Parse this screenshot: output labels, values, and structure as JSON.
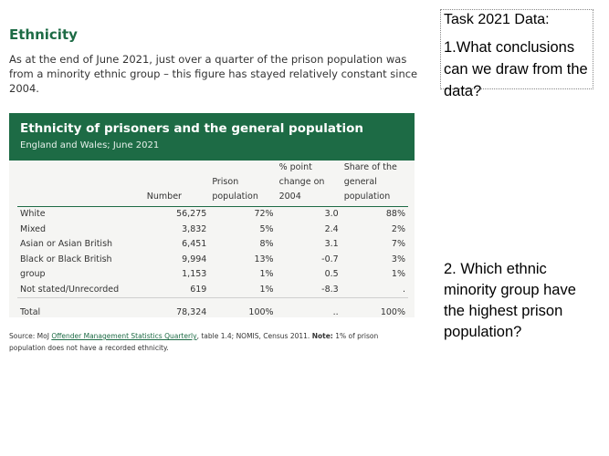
{
  "article": {
    "heading": "Ethnicity",
    "intro": "As at the end of June 2021, just over a quarter of the prison population was from a minority ethnic group – this figure has stayed relatively constant since 2004."
  },
  "table": {
    "title": "Ethnicity of prisoners and the general population",
    "subtitle": "England and Wales; June 2021",
    "headers": [
      "",
      "Number",
      "Prison population",
      "% point change on 2004",
      "Share of the general population"
    ],
    "rows": [
      [
        "White",
        "56,275",
        "72%",
        "3.0",
        "88%"
      ],
      [
        "Mixed",
        "3,832",
        "5%",
        "2.4",
        "2%"
      ],
      [
        "Asian or Asian British",
        "6,451",
        "8%",
        "3.1",
        "7%"
      ],
      [
        "Black or Black British",
        "9,994",
        "13%",
        "-0.7",
        "3%"
      ],
      [
        "group",
        "1,153",
        "1%",
        "0.5",
        "1%"
      ],
      [
        "Not stated/Unrecorded",
        "619",
        "1%",
        "-8.3",
        "."
      ]
    ],
    "total": [
      "Total",
      "78,324",
      "100%",
      "..",
      "100%"
    ]
  },
  "source": {
    "prefix": "Source:  MoJ ",
    "link": "Offender Management Statistics Quarterly",
    "middle": ", table 1.4; NOMIS, Census 2011. ",
    "note_label": "Note:",
    "note": " 1% of prison population does not have a recorded ethnicity."
  },
  "task": {
    "title": "Task 2021 Data:",
    "q1": "1.What conclusions can we draw from the data?",
    "q2": "2. Which ethnic minority group have the highest prison population?"
  },
  "colors": {
    "accent": "#1d6b45",
    "card_bg": "#f5f5f3"
  }
}
